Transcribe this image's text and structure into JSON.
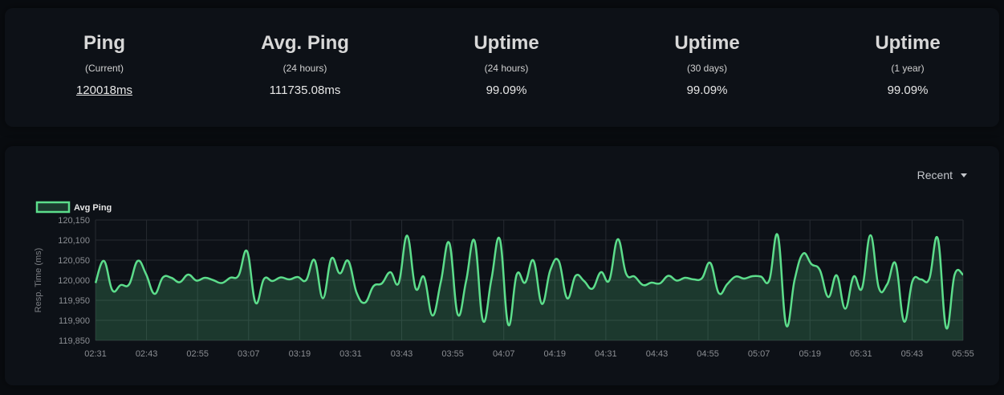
{
  "stats": [
    {
      "title": "Ping",
      "sub": "(Current)",
      "value": "120018ms",
      "link": true
    },
    {
      "title": "Avg. Ping",
      "sub": "(24 hours)",
      "value": "111735.08ms",
      "link": false
    },
    {
      "title": "Uptime",
      "sub": "(24 hours)",
      "value": "99.09%",
      "link": false
    },
    {
      "title": "Uptime",
      "sub": "(30 days)",
      "value": "99.09%",
      "link": false
    },
    {
      "title": "Uptime",
      "sub": "(1 year)",
      "value": "99.09%",
      "link": false
    }
  ],
  "dropdown": {
    "label": "Recent"
  },
  "colors": {
    "line": "#5cdd8b",
    "fill": "rgba(92,221,139,0.2)",
    "grid": "#262a31"
  },
  "chart_data": {
    "type": "area",
    "ylabel": "Resp. Time (ms)",
    "legend": "Avg Ping",
    "legend_position": "top-left",
    "grid": true,
    "ylim": [
      119850,
      120150
    ],
    "yticks": [
      "120,150",
      "120,100",
      "120,050",
      "120,000",
      "119,950",
      "119,900",
      "119,850"
    ],
    "xticks": [
      "02:31",
      "02:43",
      "02:55",
      "03:07",
      "03:19",
      "03:31",
      "03:43",
      "03:55",
      "04:07",
      "04:19",
      "04:31",
      "04:43",
      "04:55",
      "05:07",
      "05:19",
      "05:31",
      "05:43",
      "05:55"
    ],
    "values": [
      119993,
      120048,
      119975,
      119988,
      119990,
      120048,
      120015,
      119966,
      120007,
      120006,
      119995,
      120014,
      119999,
      120006,
      120000,
      119993,
      120006,
      120012,
      120072,
      119944,
      120003,
      119998,
      120007,
      120002,
      120008,
      120000,
      120050,
      119955,
      120054,
      120017,
      120048,
      119969,
      119944,
      119985,
      119992,
      120020,
      119993,
      120111,
      119980,
      120008,
      119912,
      119996,
      120093,
      119915,
      119998,
      120098,
      119899,
      120002,
      120102,
      119889,
      120014,
      119994,
      120049,
      119941,
      120025,
      120048,
      119955,
      120011,
      119998,
      119979,
      120020,
      120000,
      120102,
      120016,
      120009,
      119988,
      119994,
      119992,
      120011,
      119999,
      120006,
      120002,
      120005,
      120043,
      119968,
      119990,
      120009,
      120004,
      120010,
      120009,
      120000,
      120112,
      119888,
      120001,
      120066,
      120040,
      120025,
      119958,
      120012,
      119929,
      120009,
      119980,
      120112,
      119981,
      119990,
      120041,
      119897,
      119998,
      120002,
      120004,
      120104,
      119881,
      120014,
      120014
    ]
  }
}
